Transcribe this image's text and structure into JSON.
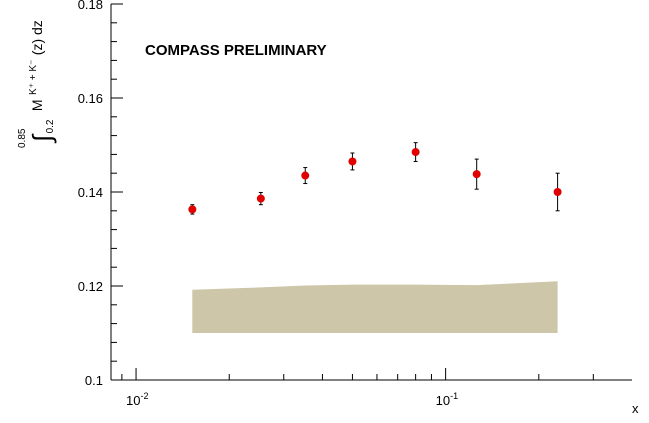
{
  "chart_data": {
    "type": "scatter",
    "title": "",
    "annotation": "COMPASS PRELIMINARY",
    "xlabel": "x",
    "ylabel": {
      "integral_upper": "0.85",
      "integral_lower": "0.2",
      "integrand": "M",
      "superscript": "K⁺ + K⁻",
      "tail": "(z) dz"
    },
    "x_scale": "log",
    "xlim": [
      0.0083,
      0.4
    ],
    "ylim": [
      0.1,
      0.18
    ],
    "x_ticks": [
      {
        "value": 0.01,
        "base": "10",
        "exp": "-2"
      },
      {
        "value": 0.1,
        "base": "10",
        "exp": "-1"
      }
    ],
    "y_ticks": [
      {
        "value": 0.1,
        "label": "0.1"
      },
      {
        "value": 0.12,
        "label": "0.12"
      },
      {
        "value": 0.14,
        "label": "0.14"
      },
      {
        "value": 0.16,
        "label": "0.16"
      },
      {
        "value": 0.18,
        "label": "0.18"
      }
    ],
    "grid": false,
    "series": [
      {
        "color": "#e00000",
        "points": [
          {
            "x": 0.0152,
            "y": 0.1363,
            "err": 0.001
          },
          {
            "x": 0.0253,
            "y": 0.1386,
            "err": 0.0013
          },
          {
            "x": 0.0352,
            "y": 0.1435,
            "err": 0.0017
          },
          {
            "x": 0.05,
            "y": 0.1465,
            "err": 0.0018
          },
          {
            "x": 0.08,
            "y": 0.1485,
            "err": 0.002
          },
          {
            "x": 0.126,
            "y": 0.1438,
            "err": 0.0032
          },
          {
            "x": 0.23,
            "y": 0.14,
            "err": 0.004
          }
        ]
      }
    ],
    "systematic_band": {
      "color": "#cdc6a9",
      "x": [
        0.0152,
        0.0253,
        0.0352,
        0.05,
        0.08,
        0.126,
        0.23
      ],
      "y_low": [
        0.11,
        0.11,
        0.11,
        0.11,
        0.11,
        0.11,
        0.11
      ],
      "y_high": [
        0.1192,
        0.1197,
        0.1201,
        0.1203,
        0.1203,
        0.1202,
        0.121
      ]
    }
  }
}
